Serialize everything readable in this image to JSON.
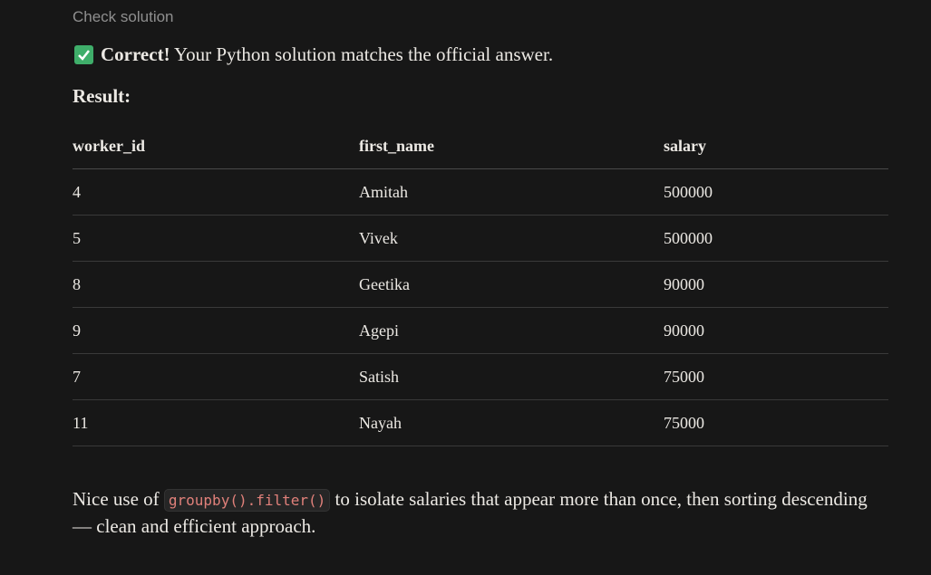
{
  "header": {
    "label": "Check solution"
  },
  "status": {
    "strong": "Correct!",
    "text": "Your Python solution matches the official answer."
  },
  "result": {
    "label": "Result:",
    "table": {
      "columns": [
        "worker_id",
        "first_name",
        "salary"
      ],
      "rows": [
        [
          4,
          "Amitah",
          500000
        ],
        [
          5,
          "Vivek",
          500000
        ],
        [
          8,
          "Geetika",
          90000
        ],
        [
          9,
          "Agepi",
          90000
        ],
        [
          7,
          "Satish",
          75000
        ],
        [
          11,
          "Nayah",
          75000
        ]
      ]
    }
  },
  "note": {
    "before": "Nice use of",
    "code": "groupby().filter()",
    "after": "to isolate salaries that appear more than once, then sorting descending — clean and efficient approach."
  }
}
